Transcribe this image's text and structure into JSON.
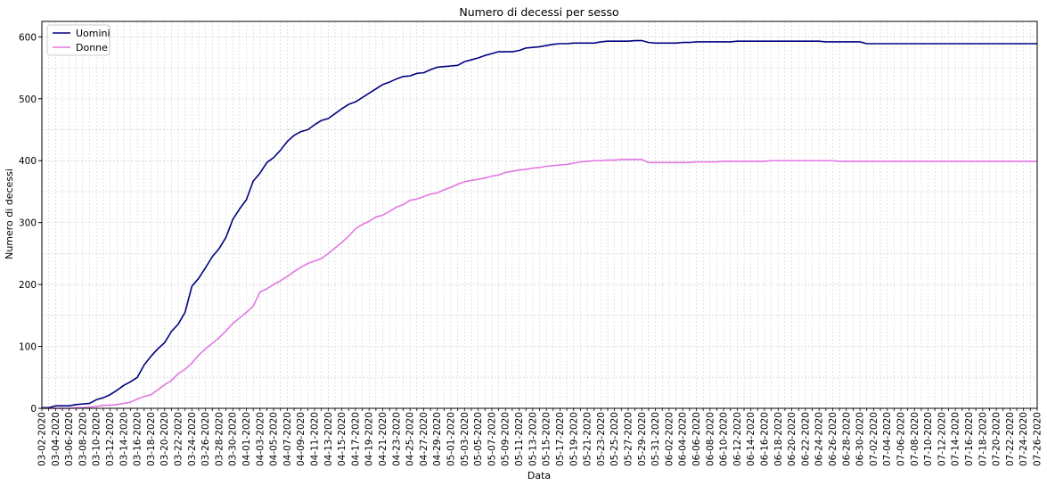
{
  "chart_data": {
    "type": "line",
    "title": "Numero di decessi per sesso",
    "xlabel": "Data",
    "ylabel": "Numero di decessi",
    "ylim": [
      0,
      625
    ],
    "yticks": [
      0,
      100,
      200,
      300,
      400,
      500,
      600
    ],
    "grid": true,
    "legend_position": "top-left",
    "x_start": "03-02-2020",
    "x_end": "07-26-2020",
    "x": [
      "03-02-2020",
      "03-03-2020",
      "03-04-2020",
      "03-05-2020",
      "03-06-2020",
      "03-07-2020",
      "03-08-2020",
      "03-09-2020",
      "03-10-2020",
      "03-11-2020",
      "03-12-2020",
      "03-13-2020",
      "03-14-2020",
      "03-15-2020",
      "03-16-2020",
      "03-17-2020",
      "03-18-2020",
      "03-19-2020",
      "03-20-2020",
      "03-21-2020",
      "03-22-2020",
      "03-23-2020",
      "03-24-2020",
      "03-25-2020",
      "03-26-2020",
      "03-27-2020",
      "03-28-2020",
      "03-29-2020",
      "03-30-2020",
      "03-31-2020",
      "04-01-2020",
      "04-02-2020",
      "04-03-2020",
      "04-04-2020",
      "04-05-2020",
      "04-06-2020",
      "04-07-2020",
      "04-08-2020",
      "04-09-2020",
      "04-10-2020",
      "04-11-2020",
      "04-12-2020",
      "04-13-2020",
      "04-14-2020",
      "04-15-2020",
      "04-16-2020",
      "04-17-2020",
      "04-18-2020",
      "04-19-2020",
      "04-20-2020",
      "04-21-2020",
      "04-22-2020",
      "04-23-2020",
      "04-24-2020",
      "04-25-2020",
      "04-26-2020",
      "04-27-2020",
      "04-28-2020",
      "04-29-2020",
      "04-30-2020",
      "05-01-2020",
      "05-02-2020",
      "05-03-2020",
      "05-04-2020",
      "05-05-2020",
      "05-06-2020",
      "05-07-2020",
      "05-08-2020",
      "05-09-2020",
      "05-10-2020",
      "05-11-2020",
      "05-12-2020",
      "05-13-2020",
      "05-14-2020",
      "05-15-2020",
      "05-16-2020",
      "05-17-2020",
      "05-18-2020",
      "05-19-2020",
      "05-20-2020",
      "05-21-2020",
      "05-22-2020",
      "05-23-2020",
      "05-24-2020",
      "05-25-2020",
      "05-26-2020",
      "05-27-2020",
      "05-28-2020",
      "05-29-2020",
      "05-30-2020",
      "05-31-2020",
      "06-01-2020",
      "06-02-2020",
      "06-03-2020",
      "06-04-2020",
      "06-05-2020",
      "06-06-2020",
      "06-07-2020",
      "06-08-2020",
      "06-09-2020",
      "06-10-2020",
      "06-11-2020",
      "06-12-2020",
      "06-13-2020",
      "06-14-2020",
      "06-15-2020",
      "06-16-2020",
      "06-17-2020",
      "06-18-2020",
      "06-19-2020",
      "06-20-2020",
      "06-21-2020",
      "06-22-2020",
      "06-23-2020",
      "06-24-2020",
      "06-25-2020",
      "06-26-2020",
      "06-27-2020",
      "06-28-2020",
      "06-29-2020",
      "06-30-2020",
      "07-01-2020",
      "07-02-2020",
      "07-03-2020",
      "07-04-2020",
      "07-05-2020",
      "07-06-2020",
      "07-07-2020",
      "07-08-2020",
      "07-09-2020",
      "07-10-2020",
      "07-11-2020",
      "07-12-2020",
      "07-13-2020",
      "07-14-2020",
      "07-15-2020",
      "07-16-2020",
      "07-17-2020",
      "07-18-2020",
      "07-19-2020",
      "07-20-2020",
      "07-21-2020",
      "07-22-2020",
      "07-23-2020",
      "07-24-2020",
      "07-25-2020",
      "07-26-2020"
    ],
    "series": [
      {
        "name": "Uomini",
        "color": "#000080",
        "values": [
          1,
          1,
          4,
          4,
          4,
          6,
          7,
          8,
          14,
          17,
          22,
          29,
          37,
          43,
          50,
          70,
          84,
          96,
          106,
          124,
          136,
          155,
          197,
          210,
          227,
          245,
          258,
          276,
          305,
          322,
          337,
          367,
          380,
          397,
          405,
          417,
          431,
          441,
          447,
          450,
          458,
          465,
          468,
          476,
          484,
          491,
          495,
          502,
          509,
          516,
          523,
          527,
          532,
          536,
          537,
          541,
          542,
          547,
          551,
          552,
          553,
          554,
          560,
          563,
          566,
          570,
          573,
          576,
          576,
          576,
          578,
          582,
          583,
          584,
          586,
          588,
          589,
          589,
          590,
          590,
          590,
          590,
          592,
          593,
          593,
          593,
          593,
          594,
          594,
          591,
          590,
          590,
          590,
          590,
          591,
          591,
          592,
          592,
          592,
          592,
          592,
          592,
          593,
          593,
          593,
          593,
          593,
          593,
          593,
          593,
          593,
          593,
          593,
          593,
          593,
          592,
          592,
          592,
          592,
          592,
          592,
          589,
          589,
          589,
          589,
          589,
          589,
          589,
          589,
          589,
          589,
          589,
          589,
          589,
          589,
          589,
          589,
          589,
          589,
          589,
          589,
          589,
          589,
          589,
          589,
          589,
          589
        ]
      },
      {
        "name": "Donne",
        "color": "#e377e3",
        "values": [
          0,
          0,
          0,
          0,
          0,
          1,
          1,
          2,
          3,
          5,
          5,
          6,
          8,
          10,
          15,
          19,
          22,
          30,
          38,
          45,
          56,
          63,
          73,
          86,
          96,
          105,
          114,
          125,
          137,
          146,
          155,
          165,
          188,
          193,
          200,
          206,
          213,
          221,
          228,
          234,
          238,
          242,
          250,
          259,
          268,
          278,
          290,
          297,
          302,
          309,
          312,
          318,
          325,
          329,
          336,
          338,
          342,
          346,
          348,
          353,
          357,
          362,
          366,
          368,
          370,
          372,
          375,
          377,
          381,
          383,
          385,
          386,
          388,
          389,
          391,
          392,
          393,
          394,
          396,
          398,
          399,
          400,
          400,
          401,
          401,
          402,
          402,
          402,
          402,
          397,
          397,
          397,
          397,
          397,
          397,
          397,
          398,
          398,
          398,
          398,
          399,
          399,
          399,
          399,
          399,
          399,
          399,
          400,
          400,
          400,
          400,
          400,
          400,
          400,
          400,
          400,
          400,
          399,
          399,
          399,
          399,
          399,
          399,
          399,
          399,
          399,
          399,
          399,
          399,
          399,
          399,
          399,
          399,
          399,
          399,
          399,
          399,
          399,
          399,
          399,
          399,
          399,
          399,
          399,
          399,
          399,
          399
        ]
      }
    ]
  }
}
